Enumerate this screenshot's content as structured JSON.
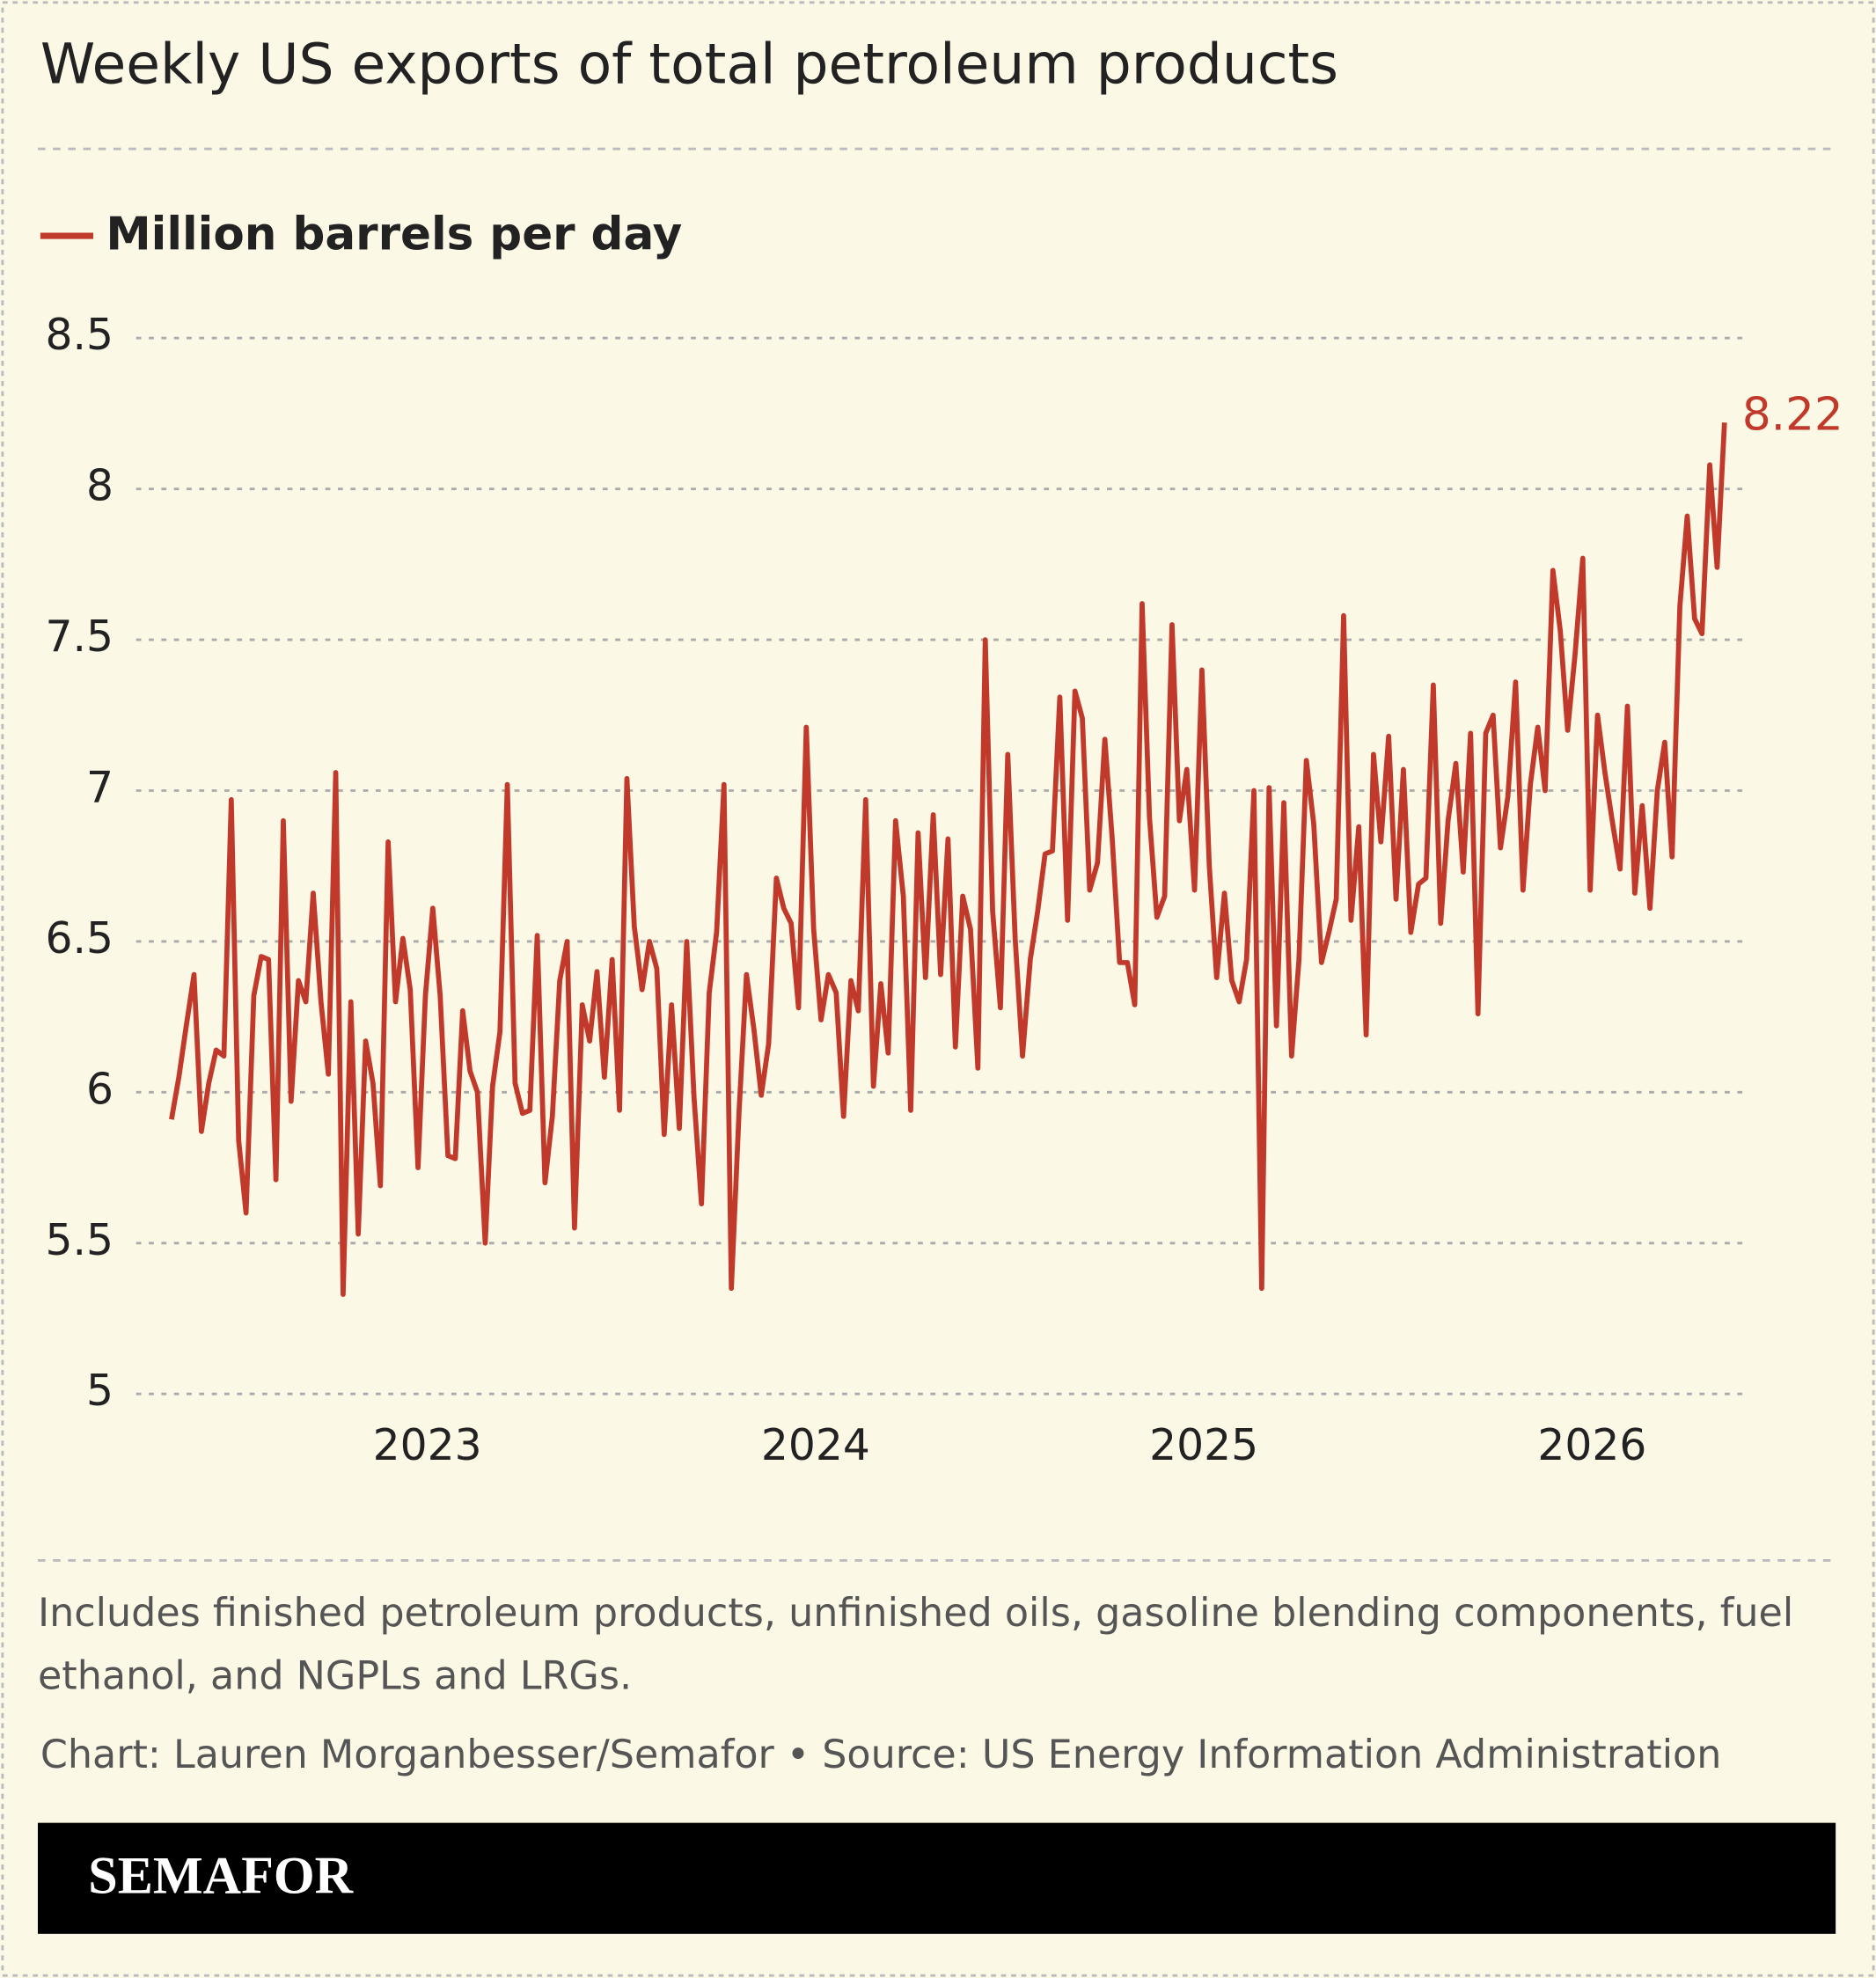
{
  "chart_data": {
    "type": "line",
    "title": "Weekly US exports of total petroleum products",
    "note": "Includes finished petroleum products, unfinished oils, gasoline blending components, fuel ethanol, and NGPLs and LRGs.",
    "credit": "Chart: Lauren Morganbesser/Semafor • Source: US Energy Information Administration",
    "logo": "SEMAFOR",
    "x": [
      2022.341,
      2022.36,
      2022.379,
      2022.399,
      2022.418,
      2022.437,
      2022.456,
      2022.476,
      2022.495,
      2022.514,
      2022.533,
      2022.553,
      2022.572,
      2022.591,
      2022.61,
      2022.629,
      2022.649,
      2022.668,
      2022.687,
      2022.706,
      2022.726,
      2022.745,
      2022.764,
      2022.783,
      2022.803,
      2022.822,
      2022.841,
      2022.86,
      2022.879,
      2022.899,
      2022.918,
      2022.937,
      2022.956,
      2022.976,
      2022.995,
      2023.014,
      2023.033,
      2023.053,
      2023.072,
      2023.091,
      2023.11,
      2023.129,
      2023.149,
      2023.168,
      2023.187,
      2023.206,
      2023.226,
      2023.245,
      2023.264,
      2023.283,
      2023.303,
      2023.322,
      2023.341,
      2023.36,
      2023.379,
      2023.399,
      2023.418,
      2023.437,
      2023.456,
      2023.476,
      2023.495,
      2023.514,
      2023.533,
      2023.553,
      2023.572,
      2023.591,
      2023.61,
      2023.629,
      2023.649,
      2023.668,
      2023.687,
      2023.706,
      2023.726,
      2023.745,
      2023.764,
      2023.783,
      2023.803,
      2023.822,
      2023.841,
      2023.86,
      2023.879,
      2023.899,
      2023.918,
      2023.937,
      2023.956,
      2023.976,
      2023.995,
      2024.014,
      2024.033,
      2024.053,
      2024.072,
      2024.091,
      2024.11,
      2024.129,
      2024.149,
      2024.168,
      2024.187,
      2024.206,
      2024.226,
      2024.245,
      2024.264,
      2024.283,
      2024.303,
      2024.322,
      2024.341,
      2024.36,
      2024.379,
      2024.399,
      2024.418,
      2024.437,
      2024.456,
      2024.476,
      2024.495,
      2024.514,
      2024.533,
      2024.553,
      2024.572,
      2024.591,
      2024.61,
      2024.629,
      2024.649,
      2024.668,
      2024.687,
      2024.706,
      2024.726,
      2024.745,
      2024.764,
      2024.783,
      2024.803,
      2024.822,
      2024.841,
      2024.86,
      2024.879,
      2024.899,
      2024.918,
      2024.937,
      2024.956,
      2024.976,
      2024.995,
      2025.014,
      2025.033,
      2025.053,
      2025.072,
      2025.091,
      2025.11,
      2025.129,
      2025.149,
      2025.168,
      2025.187,
      2025.206,
      2025.226,
      2025.245,
      2025.264,
      2025.283,
      2025.303,
      2025.322,
      2025.341,
      2025.36,
      2025.379,
      2025.399,
      2025.418,
      2025.437,
      2025.456,
      2025.476,
      2025.495,
      2025.514,
      2025.533,
      2025.553,
      2025.572,
      2025.591,
      2025.61,
      2025.629,
      2025.649,
      2025.668,
      2025.687,
      2025.706,
      2025.726,
      2025.745,
      2025.764,
      2025.783,
      2025.803,
      2025.822,
      2025.841,
      2025.86,
      2025.879,
      2025.899,
      2025.918,
      2025.937,
      2025.956,
      2025.976,
      2025.995,
      2026.014,
      2026.033,
      2026.053,
      2026.072,
      2026.091,
      2026.11,
      2026.129,
      2026.149,
      2026.168,
      2026.187,
      2026.206,
      2026.226,
      2026.245,
      2026.264,
      2026.283,
      2026.303,
      2026.322,
      2026.341
    ],
    "series": [
      {
        "name": "Million barrels per day",
        "color": "#c0392b",
        "values": [
          5.91,
          6.05,
          6.22,
          6.39,
          5.87,
          6.03,
          6.14,
          6.12,
          6.97,
          5.84,
          5.6,
          6.32,
          6.45,
          6.44,
          5.71,
          6.9,
          5.97,
          6.37,
          6.3,
          6.66,
          6.3,
          6.06,
          7.06,
          5.33,
          6.3,
          5.53,
          6.17,
          6.03,
          5.69,
          6.83,
          6.3,
          6.51,
          6.34,
          5.75,
          6.32,
          6.61,
          6.32,
          5.79,
          5.78,
          6.27,
          6.07,
          6.0,
          5.5,
          6.02,
          6.2,
          7.02,
          6.03,
          5.93,
          5.94,
          6.52,
          5.7,
          5.92,
          6.37,
          6.5,
          5.55,
          6.29,
          6.17,
          6.4,
          6.05,
          6.44,
          5.94,
          7.04,
          6.55,
          6.34,
          6.5,
          6.41,
          5.86,
          6.29,
          5.88,
          6.5,
          5.98,
          5.63,
          6.33,
          6.53,
          7.02,
          5.35,
          5.94,
          6.39,
          6.21,
          5.99,
          6.16,
          6.71,
          6.61,
          6.56,
          6.28,
          7.21,
          6.54,
          6.24,
          6.39,
          6.33,
          5.92,
          6.37,
          6.27,
          6.97,
          6.02,
          6.36,
          6.13,
          6.9,
          6.65,
          5.94,
          6.86,
          6.38,
          6.92,
          6.39,
          6.84,
          6.15,
          6.65,
          6.54,
          6.08,
          7.5,
          6.6,
          6.28,
          7.12,
          6.51,
          6.12,
          6.44,
          6.6,
          6.79,
          6.8,
          7.31,
          6.57,
          7.33,
          7.24,
          6.67,
          6.76,
          7.17,
          6.84,
          6.43,
          6.43,
          6.29,
          7.62,
          6.91,
          6.58,
          6.65,
          7.55,
          6.9,
          7.07,
          6.67,
          7.4,
          6.75,
          6.38,
          6.66,
          6.37,
          6.3,
          6.44,
          7.0,
          5.35,
          7.01,
          6.22,
          6.96,
          6.12,
          6.44,
          7.1,
          6.89,
          6.43,
          6.53,
          6.64,
          7.58,
          6.57,
          6.88,
          6.19,
          7.12,
          6.83,
          7.18,
          6.64,
          7.07,
          6.53,
          6.69,
          6.71,
          7.35,
          6.56,
          6.9,
          7.09,
          6.73,
          7.19,
          6.26,
          7.19,
          7.25,
          6.81,
          6.98,
          7.36,
          6.67,
          7.02,
          7.21,
          7.0,
          7.73,
          7.53,
          7.2,
          7.45,
          7.77,
          6.67,
          7.25,
          7.06,
          6.89,
          6.74,
          7.28,
          6.66,
          6.95,
          6.61,
          7.0,
          7.16,
          6.78,
          7.61,
          7.91,
          7.57,
          7.52,
          8.08,
          7.74,
          8.22
        ]
      }
    ],
    "xlim": [
      2022.25,
      2026.4
    ],
    "xticks": [
      2023,
      2024,
      2025,
      2026
    ],
    "ylim": [
      5,
      8.5
    ],
    "yticks": [
      5,
      5.5,
      6,
      6.5,
      7,
      7.5,
      8,
      8.5
    ],
    "grid": true
  }
}
